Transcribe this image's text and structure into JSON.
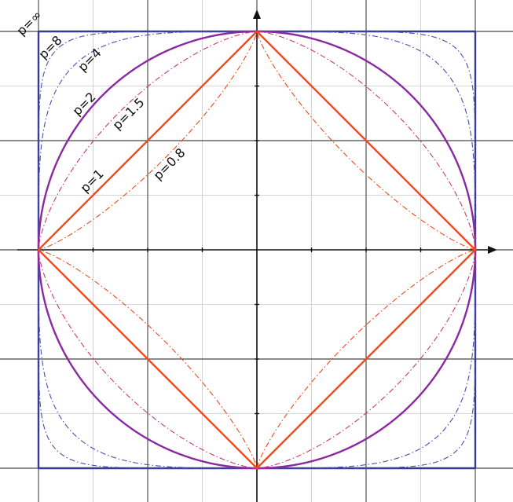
{
  "chart_data": {
    "type": "line",
    "title": "",
    "xlabel": "",
    "ylabel": "",
    "xlim": [
      -1.0,
      1.0
    ],
    "ylim": [
      -1.0,
      1.0
    ],
    "grid": true,
    "grid_step_minor": 0.25,
    "grid_step_major": 0.5,
    "series": [
      {
        "key": "inf",
        "name": "p=∞",
        "p": "inf",
        "color": "#3a3a8c",
        "style": "solid",
        "width": 2.4
      },
      {
        "key": "p8",
        "name": "p=8",
        "p": 8,
        "color": "#4b4bb0",
        "style": "dashdot",
        "width": 1.1
      },
      {
        "key": "p4",
        "name": "p=4",
        "p": 4,
        "color": "#4b4bb0",
        "style": "dashdot",
        "width": 1.1
      },
      {
        "key": "p2",
        "name": "p=2",
        "p": 2,
        "color": "#8a2aa0",
        "style": "solid",
        "width": 2.4
      },
      {
        "key": "p15",
        "name": "p=1.5",
        "p": 1.5,
        "color": "#c93a6a",
        "style": "dashdot",
        "width": 1.1
      },
      {
        "key": "p1",
        "name": "p=1",
        "p": 1,
        "color": "#f04a1e",
        "style": "solid",
        "width": 2.4
      },
      {
        "key": "p08",
        "name": "p=0.8",
        "p": 0.8,
        "color": "#f04a1e",
        "style": "dashdot",
        "width": 1.1
      }
    ]
  }
}
